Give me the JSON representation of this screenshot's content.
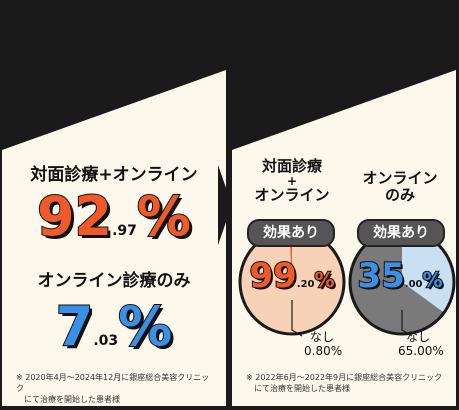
{
  "chart_data": [
    {
      "type": "table",
      "title": "対面診療+オンライン",
      "value_main": "92",
      "value_decimal": ".97",
      "unit": "%",
      "color": "#f05a28"
    },
    {
      "type": "table",
      "title": "オンライン診療のみ",
      "value_main": "7",
      "value_decimal": ".03",
      "unit": "%",
      "color": "#3a8fe6"
    },
    {
      "type": "pie",
      "title_line1": "対面診療",
      "title_line2": "+",
      "title_line3": "オンライン",
      "badge": "効果あり",
      "value_main": "99",
      "value_decimal": ".20",
      "unit": "%",
      "slices": [
        {
          "label": "効果あり",
          "value": 99.2,
          "color": "#f8d2b6"
        },
        {
          "label": "なし",
          "value": 0.8,
          "color": "#f05a28"
        }
      ],
      "none_label": "なし",
      "none_value": "0.80%",
      "value_color": "#f05a28"
    },
    {
      "type": "pie",
      "title_line1": "オンライン",
      "title_line2": "のみ",
      "badge": "効果あり",
      "value_main": "35",
      "value_decimal": ".00",
      "unit": "%",
      "slices": [
        {
          "label": "効果あり",
          "value": 35.0,
          "color": "#c9e0f2"
        },
        {
          "label": "なし",
          "value": 65.0,
          "color": "#7a7a7a"
        }
      ],
      "none_label": "なし",
      "none_value": "65.00%",
      "value_color": "#3a8fe6"
    }
  ],
  "notes": {
    "left_line1": "※ 2020年4月～2024年12月に銀座総合美容クリニック",
    "left_line2": "にて治療を開始した患者様",
    "right_line1": "※ 2022年6月～2022年9月に銀座総合美容クリニック",
    "right_line2": "にて治療を開始した患者様"
  },
  "colors": {
    "orange": "#f05a28",
    "blue": "#3a8fe6",
    "dark": "#1a1a1a",
    "paper": "#fcf9ec"
  }
}
